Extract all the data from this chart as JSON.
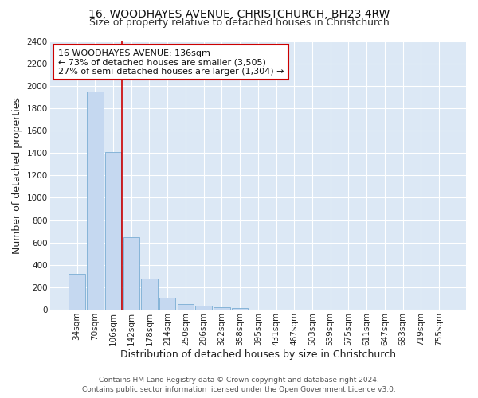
{
  "title": "16, WOODHAYES AVENUE, CHRISTCHURCH, BH23 4RW",
  "subtitle": "Size of property relative to detached houses in Christchurch",
  "xlabel": "Distribution of detached houses by size in Christchurch",
  "ylabel": "Number of detached properties",
  "bar_labels": [
    "34sqm",
    "70sqm",
    "106sqm",
    "142sqm",
    "178sqm",
    "214sqm",
    "250sqm",
    "286sqm",
    "322sqm",
    "358sqm",
    "395sqm",
    "431sqm",
    "467sqm",
    "503sqm",
    "539sqm",
    "575sqm",
    "611sqm",
    "647sqm",
    "683sqm",
    "719sqm",
    "755sqm"
  ],
  "bar_values": [
    320,
    1950,
    1410,
    650,
    275,
    105,
    48,
    35,
    20,
    15,
    0,
    0,
    0,
    0,
    0,
    0,
    0,
    0,
    0,
    0,
    0
  ],
  "bar_color": "#c5d8f0",
  "bar_edge_color": "#7aadd4",
  "property_line_x": 2.5,
  "property_line_color": "#cc0000",
  "ylim": [
    0,
    2400
  ],
  "yticks": [
    0,
    200,
    400,
    600,
    800,
    1000,
    1200,
    1400,
    1600,
    1800,
    2000,
    2200,
    2400
  ],
  "annotation_title": "16 WOODHAYES AVENUE: 136sqm",
  "annotation_line1": "← 73% of detached houses are smaller (3,505)",
  "annotation_line2": "27% of semi-detached houses are larger (1,304) →",
  "annotation_box_color": "#ffffff",
  "annotation_box_edge": "#cc0000",
  "footer_line1": "Contains HM Land Registry data © Crown copyright and database right 2024.",
  "footer_line2": "Contains public sector information licensed under the Open Government Licence v3.0.",
  "fig_bg_color": "#ffffff",
  "plot_bg_color": "#dce8f5",
  "title_fontsize": 10,
  "subtitle_fontsize": 9,
  "axis_label_fontsize": 9,
  "tick_fontsize": 7.5,
  "annotation_fontsize": 8,
  "footer_fontsize": 6.5
}
